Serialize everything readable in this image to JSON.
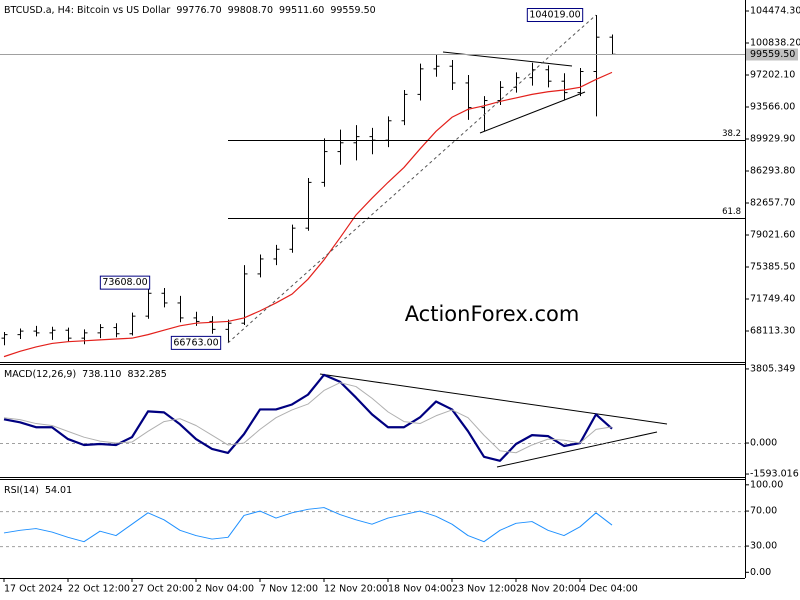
{
  "chart_data": [
    {
      "type": "ohlc",
      "title": "BTCUSD.a, H4:  Bitcoin vs US Dollar",
      "header_values": [
        {
          "value": 99776.7,
          "label": "99776.70"
        },
        {
          "value": 99808.7,
          "label": "99808.70"
        },
        {
          "value": 99511.6,
          "label": "99511.60"
        },
        {
          "value": 99559.5,
          "label": "99559.50"
        }
      ],
      "watermark": "ActionForex.com",
      "categories": [
        "17 Oct 2024",
        null,
        null,
        null,
        "22 Oct 12:00",
        null,
        null,
        null,
        "27 Oct 20:00",
        null,
        null,
        null,
        "2 Nov 04:00",
        null,
        null,
        null,
        "7 Nov 12:00",
        null,
        null,
        null,
        "12 Nov 20:00",
        null,
        null,
        null,
        "18 Nov 04:00",
        null,
        null,
        null,
        "23 Nov 12:00",
        null,
        null,
        null,
        "28 Nov 20:00",
        null,
        null,
        null,
        "4 Dec 04:00",
        null,
        null
      ],
      "open": [
        67300,
        67700,
        68100,
        67900,
        68200,
        67300,
        67900,
        68500,
        67800,
        69800,
        72400,
        71300,
        69600,
        69200,
        68300,
        69000,
        74600,
        76300,
        77400,
        79800,
        85000,
        88500,
        89500,
        90200,
        89800,
        92000,
        95000,
        97900,
        98200,
        96300,
        93500,
        94300,
        95800,
        96900,
        97800,
        96500,
        95200,
        97600,
        101500
      ],
      "high": [
        68000,
        68400,
        68700,
        68600,
        68500,
        68300,
        68900,
        69000,
        70200,
        73608,
        73000,
        72100,
        70300,
        69800,
        69400,
        75600,
        76800,
        77900,
        80200,
        85500,
        90000,
        91000,
        91500,
        91200,
        92500,
        95500,
        98500,
        99500,
        98900,
        97200,
        94800,
        96500,
        97500,
        98600,
        98300,
        97400,
        98000,
        104019,
        101800
      ],
      "low": [
        66500,
        67200,
        67500,
        67100,
        66900,
        66600,
        67300,
        67400,
        67600,
        69500,
        70800,
        69100,
        68700,
        67800,
        66763,
        68800,
        74200,
        75600,
        77000,
        79500,
        84500,
        87000,
        87500,
        88200,
        89000,
        91500,
        94300,
        97000,
        95500,
        92100,
        90800,
        93800,
        95200,
        96000,
        95800,
        94400,
        94800,
        92500,
        99511.6
      ],
      "close": [
        67700,
        68100,
        67900,
        68200,
        67300,
        67900,
        68500,
        67800,
        69800,
        72400,
        71300,
        69600,
        69200,
        68300,
        69000,
        74600,
        76300,
        77400,
        79800,
        85000,
        88500,
        89500,
        90200,
        89800,
        92000,
        95000,
        97900,
        98200,
        96300,
        93500,
        94300,
        95800,
        96900,
        97800,
        96500,
        95200,
        97600,
        101500,
        99559.5
      ],
      "color": "#000000",
      "overlay": {
        "color": "#e3201b",
        "values": [
          65200,
          65800,
          66300,
          66700,
          66900,
          67000,
          67100,
          67200,
          67300,
          67700,
          68200,
          68700,
          69000,
          69100,
          69200,
          69600,
          70400,
          71300,
          72300,
          74000,
          76200,
          78700,
          81300,
          83200,
          85000,
          86700,
          88800,
          90800,
          92400,
          93300,
          93700,
          94200,
          94600,
          95000,
          95300,
          95500,
          95800,
          96700,
          97500
        ]
      },
      "annotations": [
        {
          "value": 104019,
          "label": "104019.00"
        },
        {
          "value": 73608,
          "label": "73608.00"
        },
        {
          "value": 66763,
          "label": "66763.00"
        }
      ],
      "fib_levels": [
        38.2,
        61.8
      ],
      "ylim": [
        64590,
        105725
      ],
      "yticks": [
        {
          "value": 104474.3,
          "label": "104474.30"
        },
        {
          "value": 100838.2,
          "label": "100838.20"
        },
        {
          "value": 97202.1,
          "label": "97202.10"
        },
        {
          "value": 93566,
          "label": "93566.00"
        },
        {
          "value": 89929.9,
          "label": "89929.90"
        },
        {
          "value": 86293.8,
          "label": "86293.80"
        },
        {
          "value": 82657.7,
          "label": "82657.70"
        },
        {
          "value": 79021.6,
          "label": "79021.60"
        },
        {
          "value": 75385.5,
          "label": "75385.50"
        },
        {
          "value": 71749.4,
          "label": "71749.40"
        },
        {
          "value": 68113.3,
          "label": "68113.30"
        }
      ]
    },
    {
      "type": "line",
      "title": "MACD(12,26,9)",
      "header_values": [
        {
          "value": 738.11,
          "label": "738.110"
        },
        {
          "value": 832.285,
          "label": "832.285"
        }
      ],
      "series": [
        {
          "color": "#000080",
          "width": 2.2,
          "values": [
            1218,
            1066,
            812,
            812,
            203,
            -101,
            -51,
            -101,
            304,
            1624,
            1573,
            964,
            203,
            -304,
            -507,
            457,
            1725,
            1725,
            1979,
            2486,
            3501,
            3146,
            2334,
            1471,
            812,
            812,
            1319,
            2131,
            1725,
            609,
            -710,
            -913,
            -51,
            406,
            355,
            -152,
            0,
            1471,
            738.11
          ]
        },
        {
          "color": "#b0b0b0",
          "width": 1,
          "values": [
            1300,
            1200,
            1000,
            900,
            600,
            300,
            100,
            0,
            50,
            600,
            1100,
            1250,
            900,
            400,
            -100,
            0,
            700,
            1300,
            1700,
            2000,
            2700,
            3100,
            2900,
            2300,
            1600,
            1100,
            1000,
            1400,
            1700,
            1300,
            400,
            -400,
            -500,
            -100,
            200,
            150,
            0,
            700,
            832.285
          ]
        }
      ],
      "levels": [
        0
      ],
      "ylim": [
        -1745,
        4059
      ],
      "yticks": [
        {
          "value": 3805.349,
          "label": "3805.349"
        },
        {
          "value": 0,
          "label": "0.000"
        },
        {
          "value": -1593.016,
          "label": "-1593.016"
        }
      ]
    },
    {
      "type": "line",
      "title": "RSI(14)",
      "header_values": [
        54.01
      ],
      "series": [
        {
          "color": "#1e90ff",
          "width": 1,
          "values": [
            45,
            48,
            50,
            46,
            40,
            35,
            47,
            42,
            55,
            68,
            60,
            48,
            42,
            38,
            40,
            65,
            70,
            62,
            68,
            72,
            74,
            66,
            60,
            55,
            62,
            66,
            70,
            64,
            55,
            42,
            35,
            48,
            56,
            58,
            48,
            42,
            52,
            68,
            54.01
          ]
        }
      ],
      "levels": [
        70,
        30
      ],
      "ylim": [
        -6.5,
        105.5
      ],
      "yticks": [
        {
          "value": 100,
          "label": "100.00"
        },
        {
          "value": 70,
          "label": "70.00"
        },
        {
          "value": 30,
          "label": "30.00"
        },
        {
          "value": 0,
          "label": "0.00"
        }
      ]
    }
  ]
}
